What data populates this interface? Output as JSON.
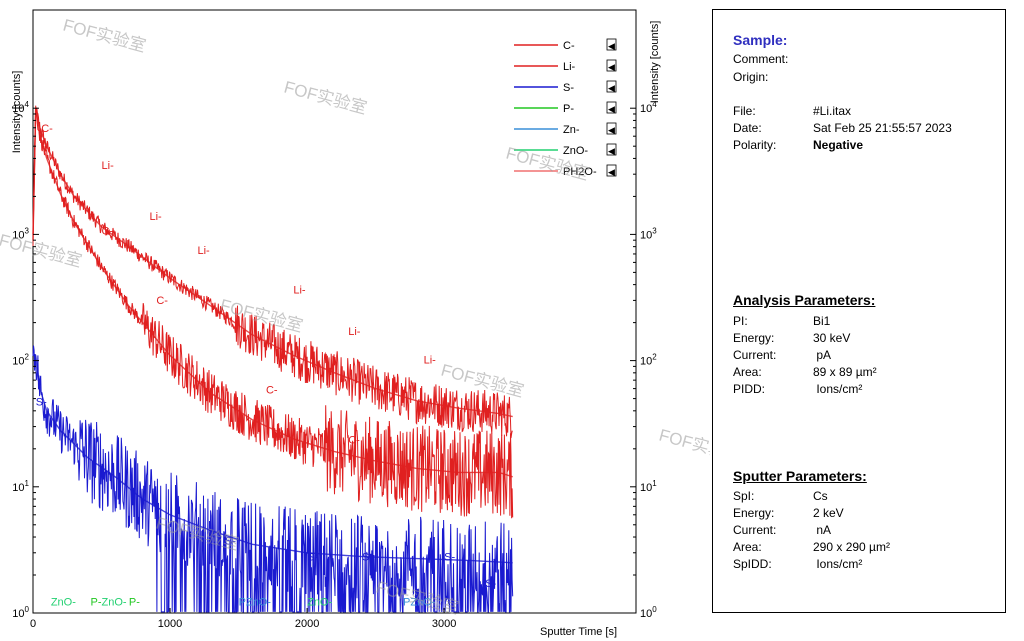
{
  "chart_data": {
    "type": "line",
    "xlabel": "Sputter Time [s]",
    "ylabel_left": "Intensity [counts]",
    "ylabel_right": "Intensity [counts]",
    "x_ticks": [
      "0",
      "1000",
      "2000",
      "3000"
    ],
    "y_ticks": [
      "10^0",
      "10^1",
      "10^2",
      "10^3",
      "10^4"
    ],
    "xlim": [
      0,
      4400
    ],
    "ylim": [
      1,
      60000
    ],
    "yscale": "log",
    "legend_position": "top-right",
    "legend": [
      {
        "name": "C-",
        "color": "#e02020"
      },
      {
        "name": "Li-",
        "color": "#e02020"
      },
      {
        "name": "S-",
        "color": "#1a1ad0"
      },
      {
        "name": "P-",
        "color": "#22c722"
      },
      {
        "name": "Zn-",
        "color": "#3a8fd8"
      },
      {
        "name": "ZnO-",
        "color": "#22d070"
      },
      {
        "name": "PH2O-",
        "color": "#f07070"
      }
    ],
    "series": [
      {
        "name": "Li-",
        "color": "#e02020",
        "x": [
          0,
          20,
          50,
          100,
          200,
          300,
          500,
          700,
          1000,
          1300,
          1600,
          1900,
          2200,
          2500,
          2800,
          3100,
          3400,
          3500
        ],
        "y": [
          1000,
          10000,
          7000,
          5000,
          3000,
          2000,
          1150,
          800,
          450,
          270,
          160,
          110,
          80,
          60,
          48,
          42,
          38,
          36
        ]
      },
      {
        "name": "C-",
        "color": "#e02020",
        "x": [
          0,
          20,
          50,
          100,
          200,
          300,
          500,
          700,
          1000,
          1300,
          1600,
          1900,
          2200,
          2500,
          2800,
          3100,
          3400,
          3500
        ],
        "y": [
          900,
          10000,
          6000,
          4000,
          2100,
          1250,
          550,
          270,
          110,
          55,
          34,
          24,
          19,
          16,
          14,
          13,
          13,
          12
        ]
      },
      {
        "name": "S-",
        "color": "#1a1ad0",
        "x": [
          0,
          20,
          50,
          100,
          200,
          400,
          600,
          800,
          1000,
          1300,
          1600,
          2000,
          2400,
          2800,
          3200,
          3500
        ],
        "y": [
          110,
          110,
          60,
          40,
          28,
          17,
          12,
          8,
          6,
          4.5,
          3.5,
          3,
          2.8,
          2.7,
          2.6,
          2.5
        ]
      }
    ],
    "annotations": {
      "c_label": "C-",
      "li_label": "Li-",
      "s_label": "S-",
      "p_label": "P-",
      "zno_label": "ZnO-",
      "pzno_label": "PZnO-"
    }
  },
  "legend_marker": "◀",
  "watermark": "FOF实验室",
  "panel": {
    "sample_heading": "Sample:",
    "comment_label": "Comment:",
    "origin_label": "Origin:",
    "file_label": "File:",
    "file_value": "#Li.itax",
    "date_label": "Date:",
    "date_value": "Sat Feb 25 21:55:57 2023",
    "polarity_label": "Polarity:",
    "polarity_value": "Negative",
    "analysis_heading": "Analysis Parameters:",
    "analysis": [
      {
        "k": "PI:",
        "v": "Bi1"
      },
      {
        "k": "Energy:",
        "v": "30 keV"
      },
      {
        "k": "Current:",
        "v": " pA"
      },
      {
        "k": "Area:",
        "v": "89 x 89 µm²"
      },
      {
        "k": "PIDD:",
        "v": " Ions/cm²"
      }
    ],
    "sputter_heading": "Sputter Parameters:",
    "sputter": [
      {
        "k": "SpI:",
        "v": "Cs"
      },
      {
        "k": "Energy:",
        "v": "2 keV"
      },
      {
        "k": "Current:",
        "v": " nA"
      },
      {
        "k": "Area:",
        "v": "290 x 290 µm²"
      },
      {
        "k": "SpIDD:",
        "v": " Ions/cm²"
      }
    ]
  }
}
